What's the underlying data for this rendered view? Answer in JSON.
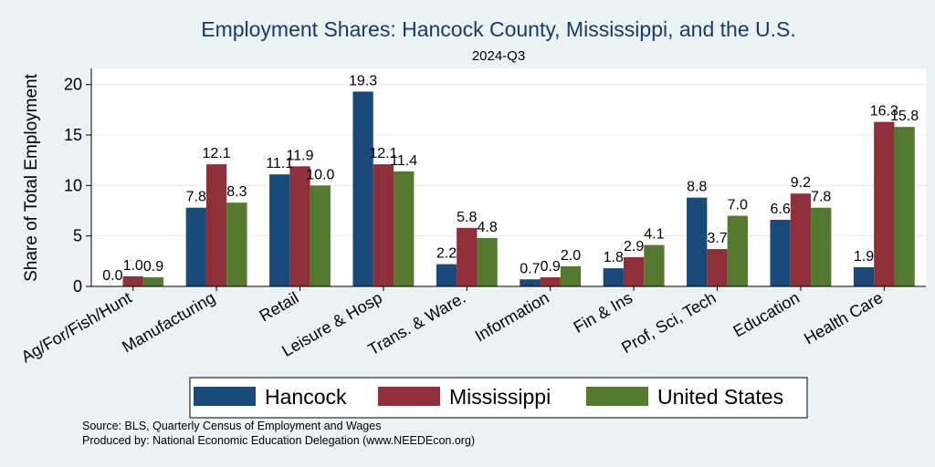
{
  "chart_data": {
    "type": "bar",
    "title": "Employment Shares: Hancock County, Mississippi, and the U.S.",
    "subtitle": "2024-Q3",
    "ylabel": "Share of Total Employment",
    "xlabel": "",
    "ylim": [
      0,
      21.6
    ],
    "yticks": [
      0,
      5,
      10,
      15,
      20
    ],
    "grid": true,
    "legend_position": "bottom",
    "categories": [
      "Ag/For/Fish/Hunt",
      "Manufacturing",
      "Retail",
      "Leisure & Hosp",
      "Trans. & Ware.",
      "Information",
      "Fin & Ins",
      "Prof, Sci, Tech",
      "Education",
      "Health Care"
    ],
    "series": [
      {
        "name": "Hancock",
        "color": "#1a4a7a",
        "values": [
          0.0,
          7.8,
          11.1,
          19.3,
          2.2,
          0.7,
          1.8,
          8.8,
          6.6,
          1.9
        ],
        "labels": [
          "0.0",
          "7.8",
          "11.1",
          "19.3",
          "2.2",
          "0.7",
          "1.8",
          "8.8",
          "6.6",
          "1.9"
        ]
      },
      {
        "name": "Mississippi",
        "color": "#8f2f3a",
        "values": [
          1.0,
          12.1,
          11.9,
          12.1,
          5.8,
          0.9,
          2.9,
          3.7,
          9.2,
          16.3
        ],
        "labels": [
          "1.0",
          "12.1",
          "11.9",
          "12.1",
          "5.8",
          "0.9",
          "2.9",
          "3.7",
          "9.2",
          "16.3"
        ]
      },
      {
        "name": "United States",
        "color": "#537a2e",
        "values": [
          0.9,
          8.3,
          10.0,
          11.4,
          4.8,
          2.0,
          4.1,
          7.0,
          7.8,
          15.8
        ],
        "labels": [
          "0.9",
          "8.3",
          "10.0",
          "11.4",
          "4.8",
          "2.0",
          "4.1",
          "7.0",
          "7.8",
          "15.8"
        ]
      }
    ]
  },
  "notes": {
    "source": "Source: BLS, Quarterly Census of Employment and Wages",
    "produced": "Produced by: National Economic Education Delegation (www.NEEDEcon.org)"
  }
}
